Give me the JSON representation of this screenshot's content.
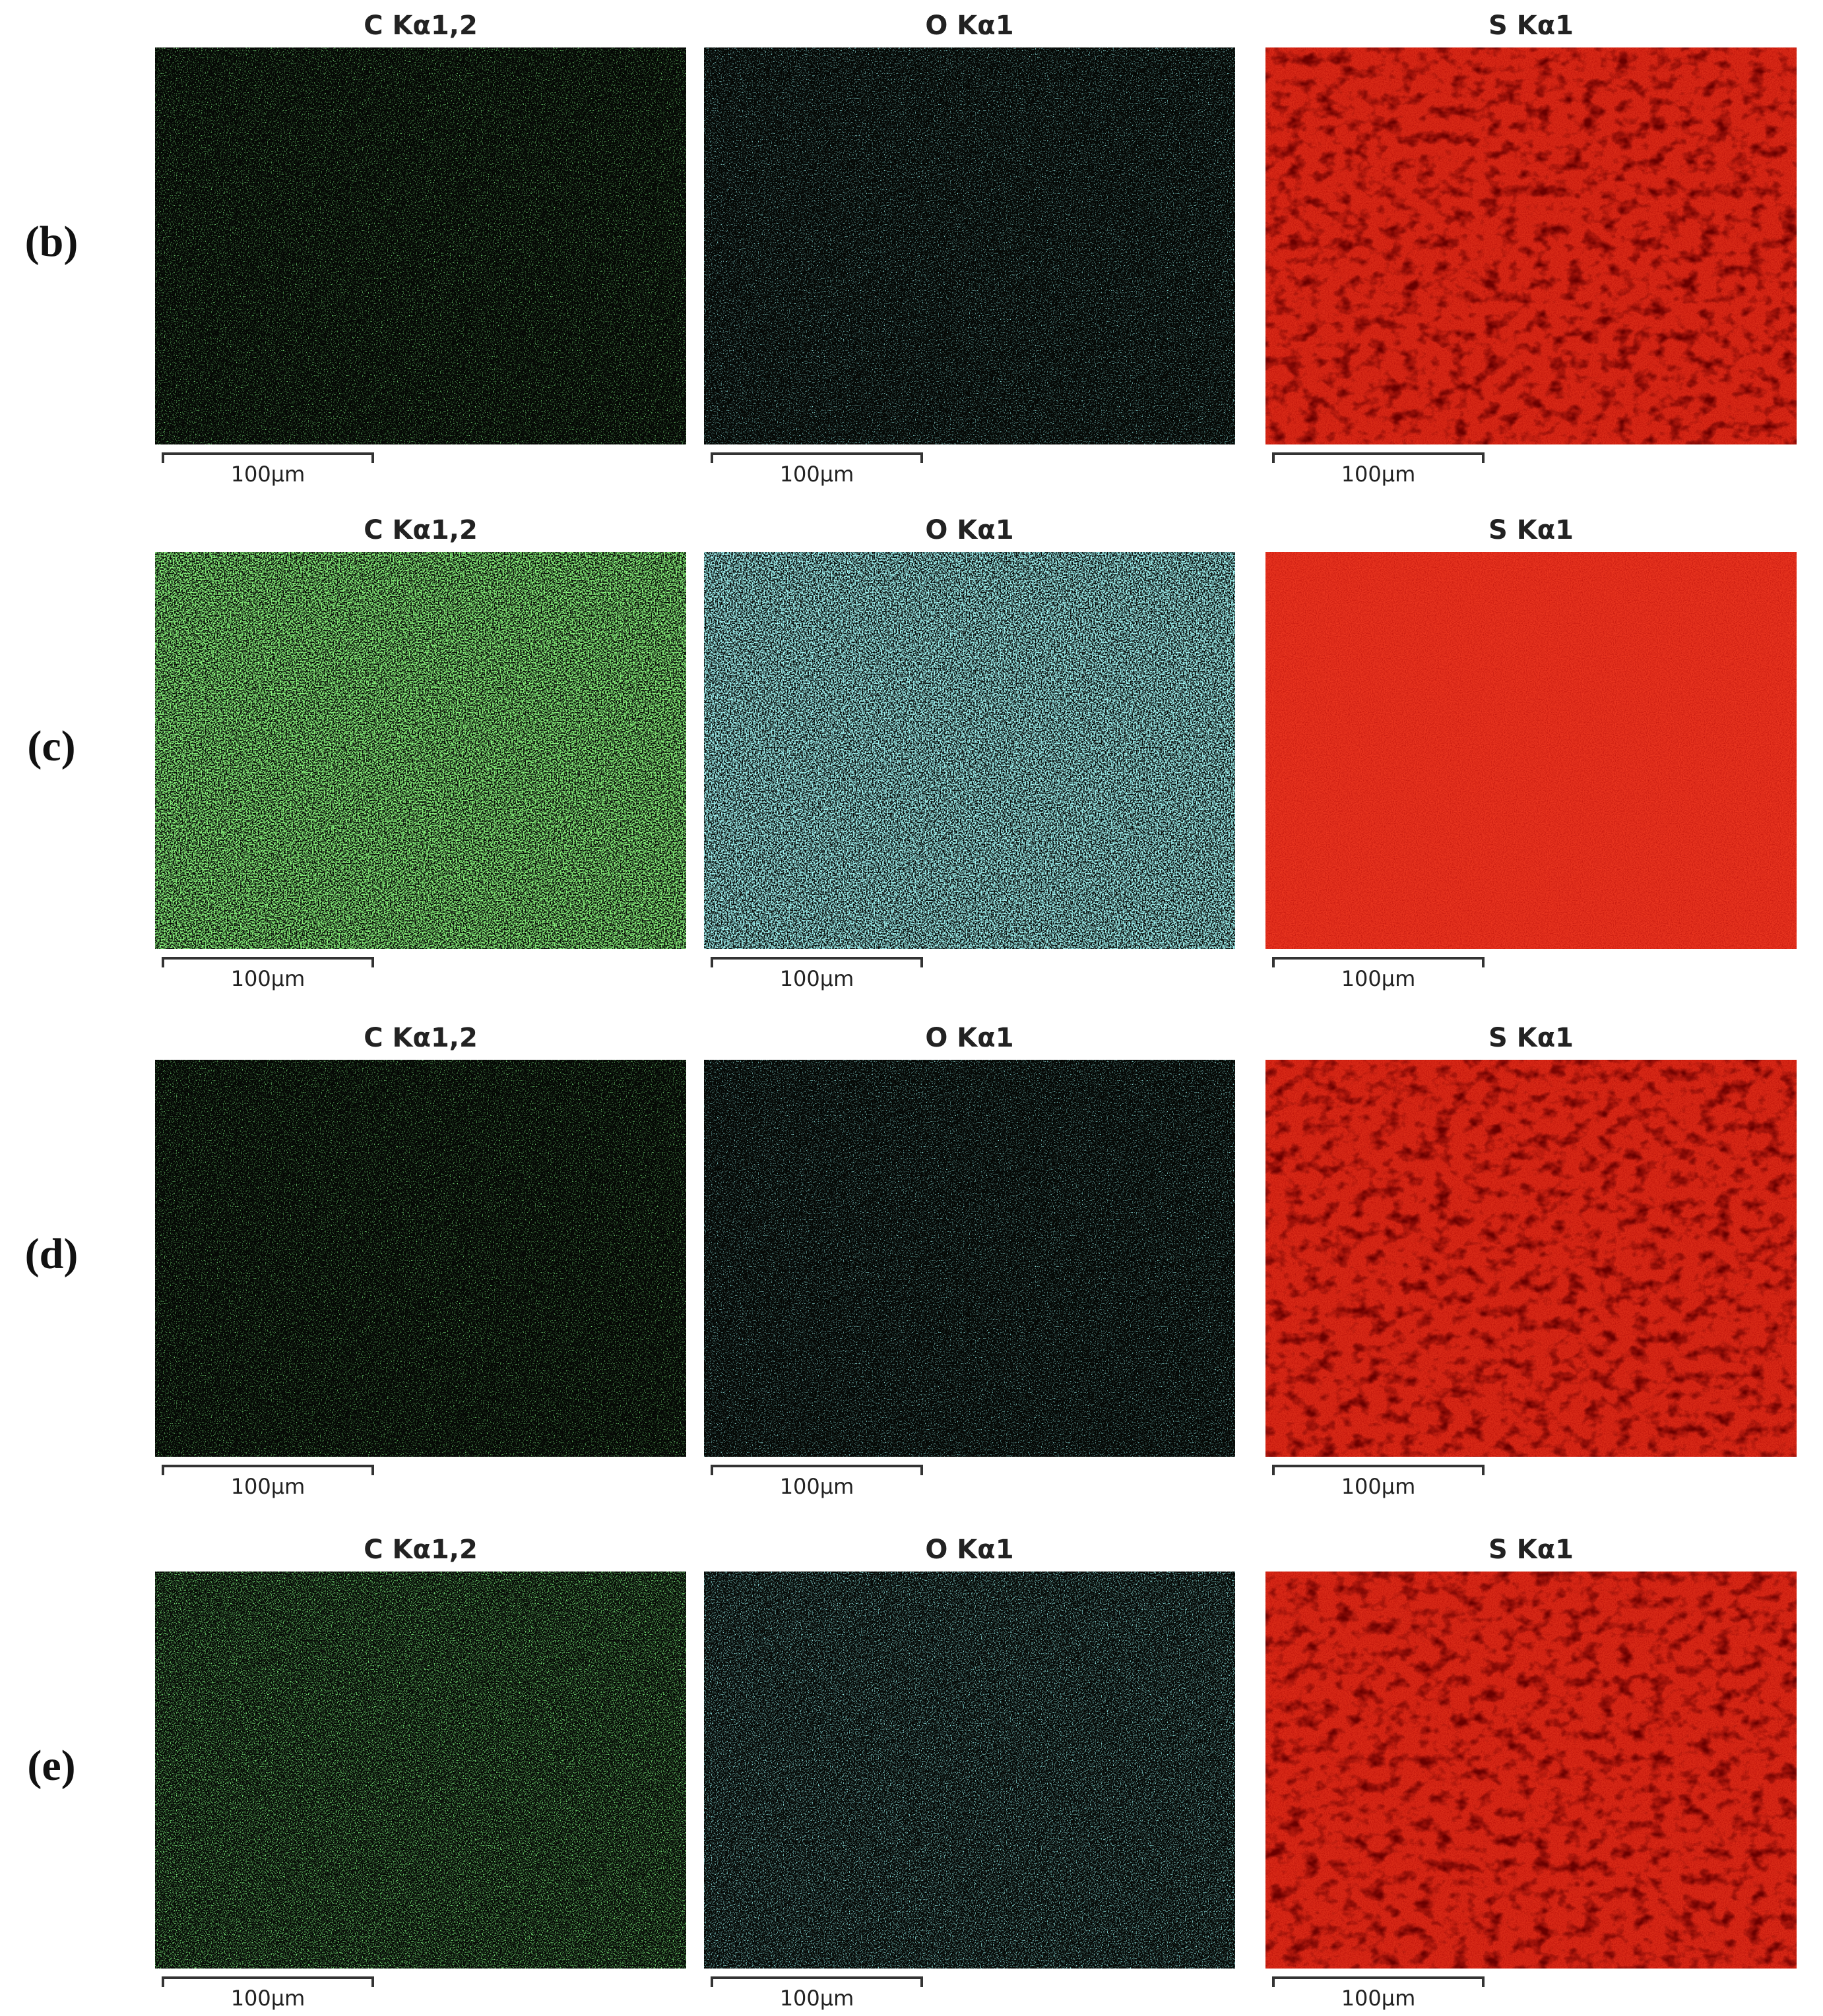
{
  "rows": [
    {
      "label": "(b)",
      "panels": [
        {
          "title": "C Kα1,2",
          "scale": "100μm"
        },
        {
          "title": "O Kα1",
          "scale": "100μm"
        },
        {
          "title": "S Kα1",
          "scale": "100μm"
        }
      ]
    },
    {
      "label": "(c)",
      "panels": [
        {
          "title": "C Kα1,2",
          "scale": "100μm"
        },
        {
          "title": "O Kα1",
          "scale": "100μm"
        },
        {
          "title": "S Kα1",
          "scale": "100μm"
        }
      ]
    },
    {
      "label": "(d)",
      "panels": [
        {
          "title": "C Kα1,2",
          "scale": "100μm"
        },
        {
          "title": "O Kα1",
          "scale": "100μm"
        },
        {
          "title": "S Kα1",
          "scale": "100μm"
        }
      ]
    },
    {
      "label": "(e)",
      "panels": [
        {
          "title": "C Kα1,2",
          "scale": "100μm"
        },
        {
          "title": "O Kα1",
          "scale": "100μm"
        },
        {
          "title": "S Kα1",
          "scale": "100μm"
        }
      ]
    }
  ]
}
